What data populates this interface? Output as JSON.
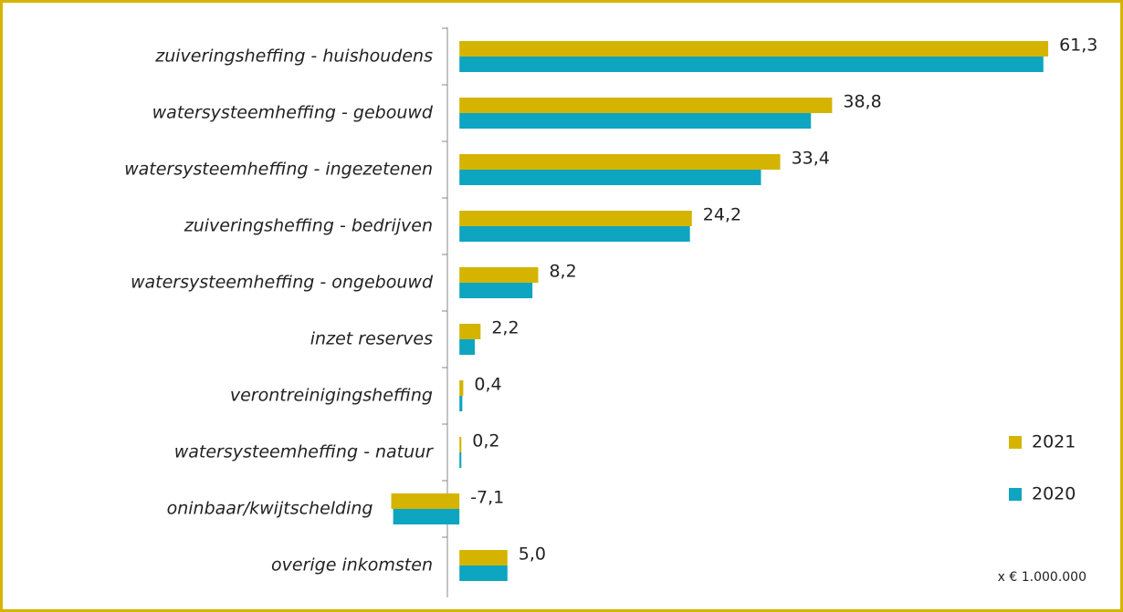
{
  "chart_data": {
    "type": "bar",
    "orientation": "horizontal",
    "categories": [
      "zuiveringsheffing - huishoudens",
      "watersysteemheffing - gebouwd",
      "watersysteemheffing - ingezetenen",
      "zuiveringsheffing - bedrijven",
      "watersysteemheffing - ongebouwd",
      "inzet reserves",
      "verontreinigingsheffing",
      "watersysteemheffing - natuur",
      "oninbaar/kwijtschelding",
      "overige inkomsten"
    ],
    "series": [
      {
        "name": "2021",
        "color": "#d4b400",
        "values": [
          61.3,
          38.8,
          33.4,
          24.2,
          8.2,
          2.2,
          0.4,
          0.2,
          -7.1,
          5.0
        ],
        "value_labels": [
          "61,3",
          "38,8",
          "33,4",
          "24,2",
          "8,2",
          "2,2",
          "0,4",
          "0,2",
          "-7,1",
          "5,0"
        ]
      },
      {
        "name": "2020",
        "color": "#0ea5c1",
        "values": [
          60.8,
          36.6,
          31.4,
          24.0,
          7.6,
          1.6,
          0.3,
          0.2,
          -6.9,
          5.0
        ]
      }
    ],
    "xlim": [
      -10,
      65
    ],
    "unit_note": "x € 1.000.000",
    "legend": "right"
  }
}
